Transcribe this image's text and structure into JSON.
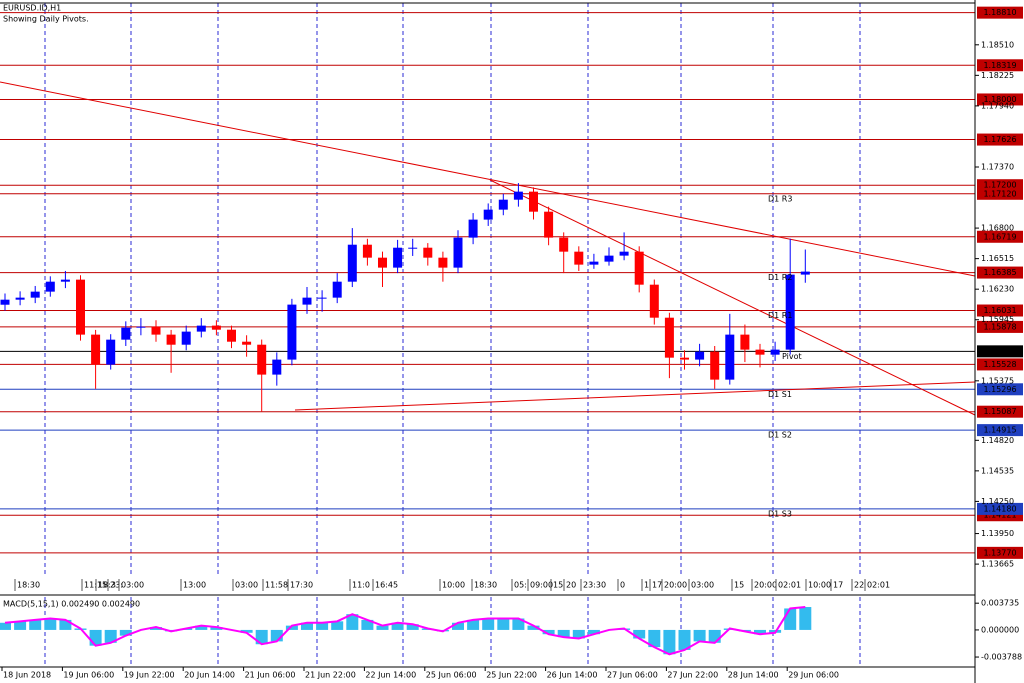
{
  "chart_data": [
    {
      "type": "candlestick",
      "title": "EURUSD.ID,H1",
      "subtitle": "Showing Daily Pivots.",
      "categories": [
        "18 Jun 2018",
        null,
        null,
        null,
        "19 Jun 06:00",
        null,
        null,
        null,
        "19 Jun 22:00",
        null,
        null,
        null,
        "20 Jun 14:00",
        null,
        null,
        null,
        "21 Jun 06:00",
        null,
        null,
        null,
        "21 Jun 22:00",
        null,
        null,
        null,
        "22 Jun 14:00",
        null,
        null,
        null,
        "25 Jun 06:00",
        null,
        null,
        null,
        "25 Jun 22:00",
        null,
        null,
        null,
        "26 Jun 14:00",
        null,
        null,
        null,
        "27 Jun 06:00",
        null,
        null,
        null,
        "27 Jun 22:00",
        null,
        null,
        null,
        "28 Jun 14:00",
        null,
        null,
        null,
        "29 Jun 06:00",
        null
      ],
      "open": [
        1.16085,
        1.16132,
        1.16151,
        1.16207,
        1.163,
        1.16319,
        1.15806,
        1.15526,
        1.15759,
        1.15871,
        1.1588,
        1.15806,
        1.15712,
        1.15834,
        1.1589,
        1.15852,
        1.1574,
        1.15712,
        1.15433,
        1.15573,
        1.16086,
        1.16151,
        1.16151,
        1.163,
        1.16645,
        1.16524,
        1.16431,
        1.16617,
        1.16617,
        1.16524,
        1.16431,
        1.16711,
        1.16879,
        1.16972,
        1.17065,
        1.1714,
        1.16953,
        1.16711,
        1.1658,
        1.16459,
        1.16487,
        1.16543,
        1.1658,
        1.16272,
        1.15964,
        1.15591,
        1.15573,
        1.15647,
        1.15386,
        1.15806,
        1.15666,
        1.15619,
        1.15666,
        1.16366
      ],
      "high": [
        1.1619,
        1.1621,
        1.1626,
        1.1635,
        1.164,
        1.1636,
        1.1585,
        1.1581,
        1.1593,
        1.1596,
        1.1594,
        1.1585,
        1.1589,
        1.1596,
        1.1594,
        1.1589,
        1.158,
        1.1576,
        1.1564,
        1.1614,
        1.1625,
        1.1622,
        1.1638,
        1.168,
        1.167,
        1.1658,
        1.1669,
        1.167,
        1.1666,
        1.1658,
        1.1678,
        1.1694,
        1.1703,
        1.1712,
        1.1722,
        1.1718,
        1.17,
        1.1676,
        1.1663,
        1.1656,
        1.1662,
        1.1676,
        1.1663,
        1.1632,
        1.1601,
        1.1566,
        1.1572,
        1.157,
        1.16,
        1.159,
        1.1572,
        1.1574,
        1.167,
        1.166
      ],
      "low": [
        1.1603,
        1.1608,
        1.161,
        1.1616,
        1.1624,
        1.1575,
        1.153,
        1.1548,
        1.157,
        1.158,
        1.1574,
        1.1545,
        1.1566,
        1.1578,
        1.158,
        1.1568,
        1.156,
        1.1509,
        1.1533,
        1.1552,
        1.16,
        1.1602,
        1.161,
        1.1625,
        1.1645,
        1.1625,
        1.1638,
        1.1654,
        1.1645,
        1.163,
        1.1638,
        1.1665,
        1.1682,
        1.1692,
        1.17,
        1.1688,
        1.1664,
        1.1638,
        1.164,
        1.1642,
        1.1645,
        1.165,
        1.162,
        1.159,
        1.154,
        1.1548,
        1.1551,
        1.153,
        1.1534,
        1.1555,
        1.155,
        1.1556,
        1.1562,
        1.1629
      ],
      "close": [
        1.16132,
        1.16151,
        1.16207,
        1.163,
        1.16319,
        1.15806,
        1.15526,
        1.15759,
        1.15871,
        1.1588,
        1.15806,
        1.15712,
        1.15834,
        1.1589,
        1.15852,
        1.1574,
        1.15712,
        1.15433,
        1.15573,
        1.16086,
        1.16151,
        1.16151,
        1.163,
        1.16645,
        1.16524,
        1.16431,
        1.16617,
        1.16617,
        1.16524,
        1.16431,
        1.16711,
        1.16879,
        1.16972,
        1.17065,
        1.1714,
        1.16953,
        1.16711,
        1.1658,
        1.16459,
        1.16487,
        1.16543,
        1.1658,
        1.16272,
        1.15964,
        1.15591,
        1.15573,
        1.15647,
        1.15386,
        1.15806,
        1.15666,
        1.15619,
        1.15666,
        1.16366,
        1.16394
      ],
      "up_color": "#0000ff",
      "down_color": "#ff0000",
      "ylim": [
        1.1361,
        1.189
      ],
      "yticks": [
        {
          "value": 1.1851,
          "label": "1.18510"
        },
        {
          "value": 1.18225,
          "label": "1.18225"
        },
        {
          "value": 1.1794,
          "label": "1.17940"
        },
        {
          "value": 1.1737,
          "label": "1.17370"
        },
        {
          "value": 1.168,
          "label": "1.16800"
        },
        {
          "value": 1.16515,
          "label": "1.16515"
        },
        {
          "value": 1.1623,
          "label": "1.16230"
        },
        {
          "value": 1.15945,
          "label": "1.15945"
        },
        {
          "value": 1.15375,
          "label": "1.15375"
        },
        {
          "value": 1.1482,
          "label": "1.14820"
        },
        {
          "value": 1.14535,
          "label": "1.14535"
        },
        {
          "value": 1.1425,
          "label": "1.14250"
        },
        {
          "value": 1.1395,
          "label": "1.13950"
        },
        {
          "value": 1.13665,
          "label": "1.13665"
        }
      ],
      "levels": [
        {
          "value": 1.1881,
          "label": "1.18810",
          "color": "#c00000"
        },
        {
          "value": 1.18319,
          "label": "1.18319",
          "color": "#c00000"
        },
        {
          "value": 1.18,
          "label": "1.18000",
          "color": "#c00000"
        },
        {
          "value": 1.17626,
          "label": "1.17626",
          "color": "#c00000"
        },
        {
          "value": 1.172,
          "label": "1.17200",
          "color": "#c00000"
        },
        {
          "value": 1.1712,
          "label": "1.17120",
          "color": "#c00000"
        },
        {
          "value": 1.16719,
          "label": "1.16719",
          "color": "#c00000"
        },
        {
          "value": 1.16385,
          "label": "1.16385",
          "color": "#c00000"
        },
        {
          "value": 1.16031,
          "label": "1.16031",
          "color": "#c00000"
        },
        {
          "value": 1.15878,
          "label": "1.15878",
          "color": "#c00000"
        },
        {
          "value": 1.1565,
          "label": "1.15650",
          "color": "#000000"
        },
        {
          "value": 1.15528,
          "label": "1.15528",
          "color": "#c00000"
        },
        {
          "value": 1.15296,
          "label": "1.15296",
          "color": "#1f3fbf"
        },
        {
          "value": 1.15087,
          "label": "1.15087",
          "color": "#c00000"
        },
        {
          "value": 1.14915,
          "label": "1.14915",
          "color": "#1f3fbf"
        },
        {
          "value": 1.14121,
          "label": "1.14121",
          "color": "#c00000"
        },
        {
          "value": 1.1418,
          "label": "1.14180",
          "color": "#1f3fbf"
        },
        {
          "value": 1.1377,
          "label": "1.13770",
          "color": "#c00000"
        }
      ],
      "pivot_labels": [
        {
          "value": 1.1712,
          "label": "D1 R3"
        },
        {
          "value": 1.16385,
          "label": "D1 R2"
        },
        {
          "value": 1.16031,
          "label": "D1 R1"
        },
        {
          "value": 1.1565,
          "label": "Pivot"
        },
        {
          "value": 1.15296,
          "label": "D1 S1"
        },
        {
          "value": 1.14915,
          "label": "D1 S2"
        },
        {
          "value": 1.1418,
          "label": "D1 S3"
        }
      ],
      "time_boxes": [
        "18:30",
        "11:15",
        "18:3",
        "23:",
        "03:00",
        "13:00",
        "03:00",
        "11:58",
        "17:30",
        "11:0",
        "16:45",
        "10:00",
        "18:30",
        "05:",
        "09:00",
        "15",
        "20",
        "23:30",
        "0",
        "1",
        "17",
        "20:00",
        "03:00",
        "15",
        "20:00",
        "02:01",
        "10:00",
        "17",
        "22",
        "02:01"
      ]
    },
    {
      "type": "bar",
      "title": "MACD(5,15,1) 0.002490 0.002490",
      "values": [
        0.001,
        0.0012,
        0.0014,
        0.0016,
        0.0014,
        0.0002,
        -0.0022,
        -0.0018,
        -0.0008,
        0.0,
        0.0004,
        -0.0002,
        0.0002,
        0.0006,
        0.0004,
        0.0,
        -0.0004,
        -0.002,
        -0.0016,
        0.0006,
        0.001,
        0.001,
        0.0012,
        0.0022,
        0.0014,
        0.0006,
        0.001,
        0.0008,
        0.0002,
        -0.0002,
        0.001,
        0.0014,
        0.0016,
        0.0016,
        0.0016,
        0.0006,
        -0.0006,
        -0.001,
        -0.0012,
        -0.0006,
        0.0,
        0.0002,
        -0.0012,
        -0.0024,
        -0.0034,
        -0.0028,
        -0.0016,
        -0.0018,
        0.0002,
        -0.0002,
        -0.0006,
        -0.0004,
        0.003,
        0.0032
      ],
      "color": "#33bbee",
      "line_color": "#ff00ff",
      "ylim": [
        -0.0049,
        0.0046
      ],
      "yticks": [
        {
          "value": 0.003735,
          "label": "0.003735"
        },
        {
          "value": 0,
          "label": "0.000000"
        },
        {
          "value": -0.003788,
          "label": "-0.003788"
        }
      ]
    }
  ]
}
